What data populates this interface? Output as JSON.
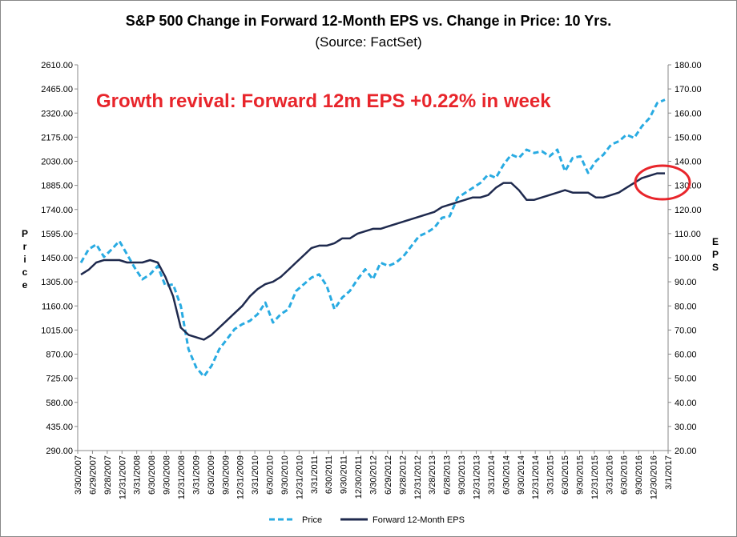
{
  "chart_data": {
    "type": "line",
    "title": "S&P 500 Change in Forward 12-Month EPS vs. Change in Price: 10 Yrs.",
    "subtitle": "(Source: FactSet)",
    "annotation": "Growth revival: Forward 12m EPS +0.22% in week",
    "ylabel_left": "Price",
    "ylabel_right": "EPS",
    "ylim_left": [
      290,
      2610
    ],
    "ylim_right": [
      20,
      180
    ],
    "yticks_left": [
      "2610.00",
      "2465.00",
      "2320.00",
      "2175.00",
      "2030.00",
      "1885.00",
      "1740.00",
      "1595.00",
      "1450.00",
      "1305.00",
      "1160.00",
      "1015.00",
      "870.00",
      "725.00",
      "580.00",
      "435.00",
      "290.00"
    ],
    "yticks_right": [
      "180.00",
      "170.00",
      "160.00",
      "150.00",
      "140.00",
      "130.00",
      "120.00",
      "110.00",
      "100.00",
      "90.00",
      "80.00",
      "70.00",
      "60.00",
      "50.00",
      "40.00",
      "30.00",
      "20.00"
    ],
    "xticks": [
      "3/30/2007",
      "6/29/2007",
      "9/28/2007",
      "12/31/2007",
      "3/31/2008",
      "6/30/2008",
      "9/30/2008",
      "12/31/2008",
      "3/31/2009",
      "6/30/2009",
      "9/30/2009",
      "12/31/2009",
      "3/31/2010",
      "6/30/2010",
      "9/30/2010",
      "12/31/2010",
      "3/31/2011",
      "6/30/2011",
      "9/30/2011",
      "12/30/2011",
      "3/30/2012",
      "6/29/2012",
      "9/28/2012",
      "12/31/2012",
      "3/28/2013",
      "6/28/2013",
      "9/30/2013",
      "12/31/2013",
      "3/31/2014",
      "6/30/2014",
      "9/30/2014",
      "12/31/2014",
      "3/31/2015",
      "6/30/2015",
      "9/30/2015",
      "12/31/2015",
      "3/31/2016",
      "6/30/2016",
      "9/30/2016",
      "12/30/2016",
      "3/1/2017"
    ],
    "grid": false,
    "legend_position": "bottom",
    "series": [
      {
        "name": "Price",
        "axis": "left",
        "color": "#29abe2",
        "style": "dashed",
        "values": [
          1420,
          1500,
          1530,
          1455,
          1500,
          1550,
          1470,
          1390,
          1320,
          1350,
          1400,
          1280,
          1290,
          1160,
          900,
          790,
          735,
          800,
          900,
          960,
          1020,
          1050,
          1070,
          1110,
          1180,
          1060,
          1110,
          1140,
          1250,
          1290,
          1330,
          1350,
          1280,
          1140,
          1210,
          1250,
          1320,
          1380,
          1320,
          1420,
          1400,
          1420,
          1460,
          1520,
          1580,
          1600,
          1630,
          1690,
          1700,
          1810,
          1840,
          1870,
          1900,
          1950,
          1930,
          2010,
          2070,
          2050,
          2100,
          2080,
          2090,
          2060,
          2100,
          1970,
          2050,
          2060,
          1960,
          2030,
          2070,
          2130,
          2150,
          2190,
          2170,
          2240,
          2290,
          2380,
          2400
        ]
      },
      {
        "name": "Forward 12-Month EPS",
        "axis": "right",
        "color": "#1f2a4e",
        "style": "solid",
        "values": [
          93,
          95,
          98,
          99,
          99,
          99,
          98,
          98,
          98,
          99,
          98,
          92,
          84,
          71,
          68,
          67,
          66,
          68,
          71,
          74,
          77,
          80,
          84,
          87,
          89,
          90,
          92,
          95,
          98,
          101,
          104,
          105,
          105,
          106,
          108,
          108,
          110,
          111,
          112,
          112,
          113,
          114,
          115,
          116,
          117,
          118,
          119,
          121,
          122,
          123,
          124,
          125,
          125,
          126,
          129,
          131,
          131,
          128,
          124,
          124,
          125,
          126,
          127,
          128,
          127,
          127,
          127,
          125,
          125,
          126,
          127,
          129,
          131,
          133,
          134,
          135,
          135
        ]
      }
    ]
  }
}
